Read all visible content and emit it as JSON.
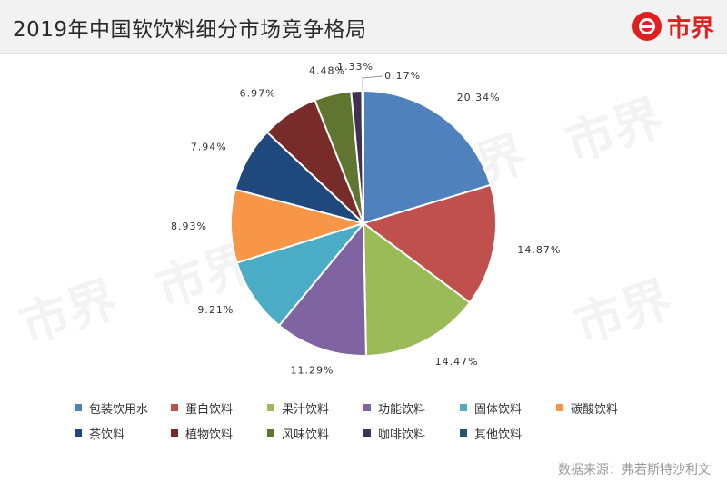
{
  "title": "2019年中国软饮料细分市场竞争格局",
  "logo": {
    "text": "市界"
  },
  "source": "数据来源：弗若斯特沙利文",
  "chart_data": {
    "type": "pie",
    "start_angle_deg": 0,
    "direction": "clockwise",
    "legend_position": "bottom",
    "slices": [
      {
        "label": "包装饮用水",
        "value": 20.34,
        "value_label": "20.34%",
        "color": "#4f81bd"
      },
      {
        "label": "蛋白饮料",
        "value": 14.87,
        "value_label": "14.87%",
        "color": "#c0504d"
      },
      {
        "label": "果汁饮料",
        "value": 14.47,
        "value_label": "14.47%",
        "color": "#9bbb59"
      },
      {
        "label": "功能饮料",
        "value": 11.29,
        "value_label": "11.29%",
        "color": "#8064a2"
      },
      {
        "label": "固体饮料",
        "value": 9.21,
        "value_label": "9.21%",
        "color": "#4bacc6"
      },
      {
        "label": "碳酸饮料",
        "value": 8.93,
        "value_label": "8.93%",
        "color": "#f79646"
      },
      {
        "label": "茶饮料",
        "value": 7.94,
        "value_label": "7.94%",
        "color": "#1f497d"
      },
      {
        "label": "植物饮料",
        "value": 6.97,
        "value_label": "6.97%",
        "color": "#772c2a"
      },
      {
        "label": "风味饮料",
        "value": 4.48,
        "value_label": "4.48%",
        "color": "#5f7530"
      },
      {
        "label": "咖啡饮料",
        "value": 1.33,
        "value_label": "1.33%",
        "color": "#3f3151"
      },
      {
        "label": "其他饮料",
        "value": 0.17,
        "value_label": "0.17%",
        "color": "#215968"
      }
    ]
  }
}
